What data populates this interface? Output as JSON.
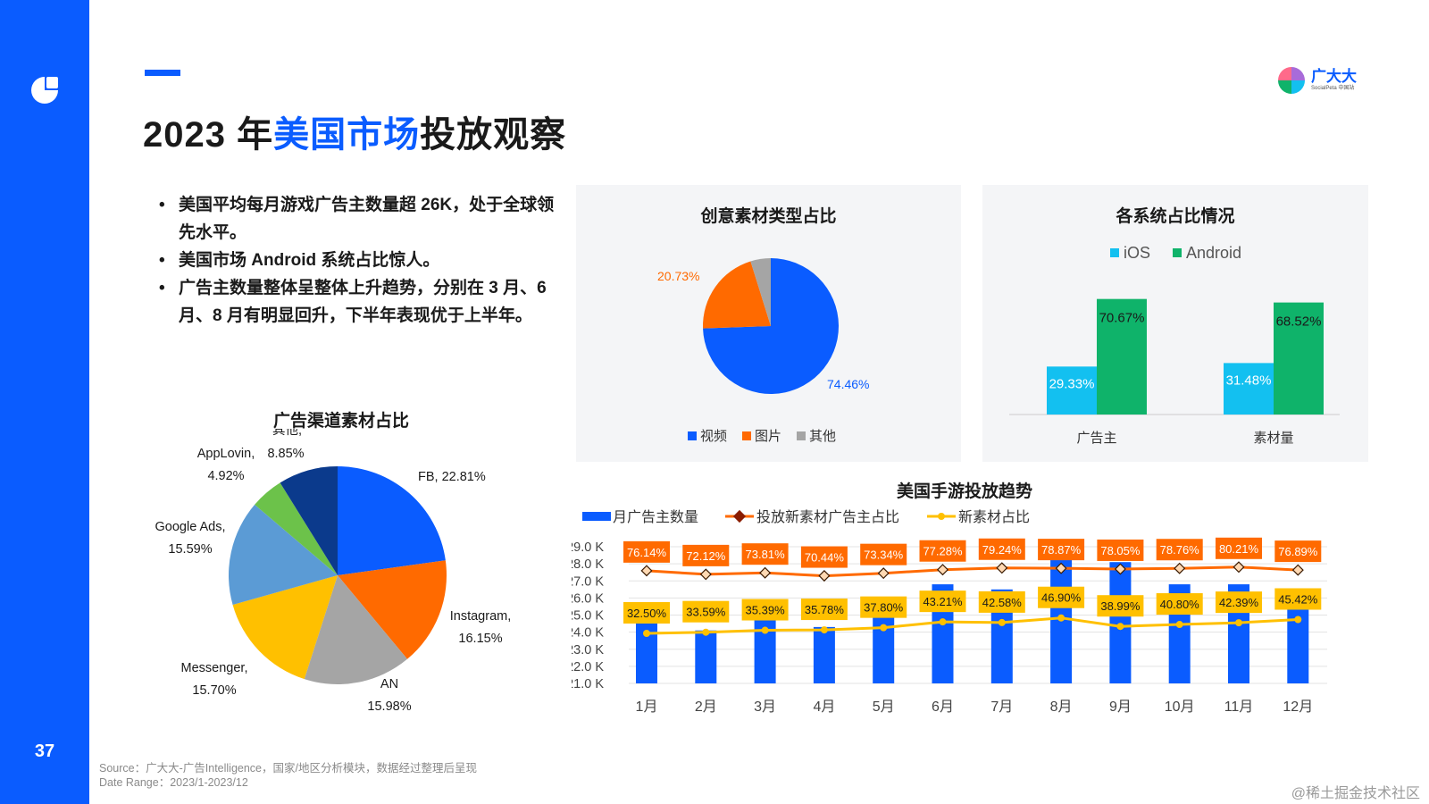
{
  "page": {
    "number": "37",
    "title_part1": "2023 年",
    "title_highlight": "美国市场",
    "title_part2": "投放观察",
    "brand_name": "广大大",
    "brand_sub": "SocialPeta 中国站",
    "bullets": [
      "美国平均每月游戏广告主数量超 26K，处于全球领先水平。",
      "美国市场 Android 系统占比惊人。",
      "广告主数量整体呈整体上升趋势，分别在 3 月、6 月、8 月有明显回升，下半年表现优于上半年。"
    ],
    "source_line1": "Source：广大大-广告Intelligence，国家/地区分析模块，数据经过整理后呈现",
    "source_line2": "Date Range：2023/1-2023/12",
    "credit": "@稀土掘金技术社区"
  },
  "colors": {
    "accent": "#0a5cff",
    "blue": "#0a5cff",
    "orange": "#ff6a00",
    "gray": "#a5a5a5",
    "cyan": "#13c0f0",
    "green": "#0fb36a",
    "yellow": "#ffc000",
    "lightblue": "#5b9bd5",
    "lime": "#6cc24a",
    "navy": "#0b3a8c"
  },
  "chart_data": [
    {
      "id": "creative",
      "type": "pie",
      "title": "创意素材类型占比",
      "labels": [
        "视频",
        "图片",
        "其他"
      ],
      "values": [
        74.46,
        20.73,
        4.81
      ],
      "display": [
        "74.46%",
        "20.73%",
        ""
      ],
      "colors": [
        "#0a5cff",
        "#ff6a00",
        "#a5a5a5"
      ],
      "legend_position": "bottom"
    },
    {
      "id": "system",
      "type": "bar",
      "title": "各系统占比情况",
      "categories": [
        "广告主",
        "素材量"
      ],
      "series": [
        {
          "name": "iOS",
          "values": [
            29.33,
            31.48
          ],
          "display": [
            "29.33%",
            "31.48%"
          ],
          "color": "#13c0f0"
        },
        {
          "name": "Android",
          "values": [
            70.67,
            68.52
          ],
          "display": [
            "70.67%",
            "68.52%"
          ],
          "color": "#0fb36a"
        }
      ],
      "ylim": [
        0,
        100
      ],
      "legend_position": "top"
    },
    {
      "id": "channel",
      "type": "pie",
      "title": "广告渠道素材占比",
      "slices": [
        {
          "name": "FB",
          "value": 22.81,
          "label_line1": "FB, 22.81%",
          "label_line2": "",
          "color": "#0a5cff"
        },
        {
          "name": "Instagram",
          "value": 16.15,
          "label_line1": "Instagram,",
          "label_line2": "16.15%",
          "color": "#ff6a00"
        },
        {
          "name": "AN",
          "value": 15.98,
          "label_line1": "AN",
          "label_line2": "15.98%",
          "color": "#a5a5a5"
        },
        {
          "name": "Messenger",
          "value": 15.7,
          "label_line1": "Messenger,",
          "label_line2": "15.70%",
          "color": "#ffc000"
        },
        {
          "name": "Google Ads",
          "value": 15.59,
          "label_line1": "Google Ads,",
          "label_line2": "15.59%",
          "color": "#5b9bd5"
        },
        {
          "name": "AppLovin",
          "value": 4.92,
          "label_line1": "AppLovin,",
          "label_line2": "4.92%",
          "color": "#6cc24a"
        },
        {
          "name": "其他",
          "value": 8.85,
          "label_line1": "其他,",
          "label_line2": "8.85%",
          "color": "#0b3a8c"
        }
      ]
    },
    {
      "id": "trend",
      "type": "bar",
      "title": "美国手游投放趋势",
      "categories": [
        "1月",
        "2月",
        "3月",
        "4月",
        "5月",
        "6月",
        "7月",
        "8月",
        "9月",
        "10月",
        "11月",
        "12月"
      ],
      "series": [
        {
          "name": "月广告主数量",
          "type": "bar",
          "axis": "left",
          "values": [
            25.0,
            24.1,
            25.4,
            24.3,
            25.0,
            26.8,
            26.5,
            28.3,
            28.1,
            26.8,
            26.8,
            26.4
          ],
          "color": "#0a5cff"
        },
        {
          "name": "投放新素材广告主占比",
          "type": "line",
          "axis": "right",
          "values": [
            76.14,
            72.12,
            73.81,
            70.44,
            73.34,
            77.28,
            79.24,
            78.87,
            78.05,
            78.76,
            80.21,
            76.89
          ],
          "display": [
            "76.14%",
            "72.12%",
            "73.81%",
            "70.44%",
            "73.34%",
            "77.28%",
            "79.24%",
            "78.87%",
            "78.05%",
            "78.76%",
            "80.21%",
            "76.89%"
          ],
          "color": "#ff6a00"
        },
        {
          "name": "新素材占比",
          "type": "line",
          "axis": "right",
          "values": [
            32.5,
            33.59,
            35.39,
            35.78,
            37.8,
            43.21,
            42.58,
            46.9,
            38.99,
            40.8,
            42.39,
            45.42
          ],
          "display": [
            "32.50%",
            "33.59%",
            "35.39%",
            "35.78%",
            "37.80%",
            "43.21%",
            "42.58%",
            "46.90%",
            "38.99%",
            "40.80%",
            "42.39%",
            "45.42%"
          ],
          "color": "#ffc000"
        }
      ],
      "yticks": [
        "29.0 K",
        "28.0 K",
        "27.0 K",
        "26.0 K",
        "25.0 K",
        "24.0 K",
        "23.0 K",
        "22.0 K",
        "21.0 K"
      ],
      "ylim": [
        21,
        29
      ],
      "legend_position": "top"
    }
  ]
}
